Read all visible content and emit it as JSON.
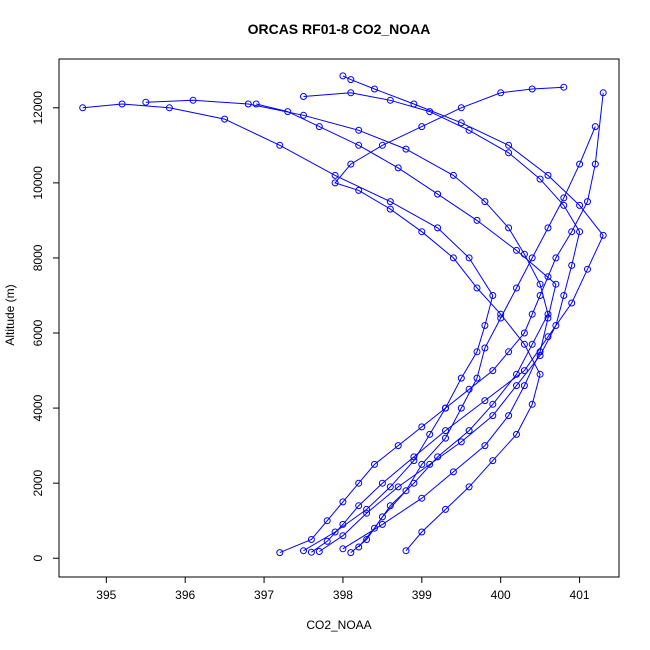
{
  "chart_data": {
    "type": "scatter",
    "title": "ORCAS RF01-8 CO2_NOAA",
    "xlabel": "CO2_NOAA",
    "ylabel": "Altitude (m)",
    "xlim": [
      394.4,
      401.5
    ],
    "ylim": [
      -500,
      13300
    ],
    "x_ticks": [
      395,
      396,
      397,
      398,
      399,
      400,
      401
    ],
    "y_ticks": [
      0,
      2000,
      4000,
      6000,
      8000,
      10000,
      12000
    ],
    "grid": false,
    "legend": "none",
    "markers": "open-circle",
    "lines": true,
    "color": "#0000ff",
    "series": [
      {
        "x": [
          397.2,
          397.6,
          397.8,
          398.0,
          398.2,
          398.4,
          398.7,
          399.0,
          399.3,
          399.6,
          399.9,
          400.1,
          400.3,
          400.4,
          400.5,
          400.6,
          400.7,
          400.9,
          401.1,
          401.2,
          401.3
        ],
        "y": [
          150,
          500,
          1000,
          1500,
          2000,
          2500,
          3000,
          3500,
          4000,
          4500,
          5000,
          5500,
          6000,
          6500,
          7000,
          7500,
          8000,
          8700,
          9500,
          10500,
          12400
        ]
      },
      {
        "x": [
          397.5,
          397.9,
          398.3,
          398.6,
          398.9,
          399.1,
          399.3,
          399.5,
          399.7,
          399.8,
          399.9,
          399.6,
          399.2,
          398.6,
          397.9,
          397.2,
          396.5,
          395.8,
          395.2,
          394.7
        ],
        "y": [
          200,
          700,
          1300,
          1900,
          2600,
          3300,
          4000,
          4800,
          5500,
          6200,
          7000,
          8000,
          8800,
          9500,
          10200,
          11000,
          11700,
          12000,
          12100,
          12000
        ]
      },
      {
        "x": [
          398.2,
          398.4,
          398.6,
          398.9,
          399.2,
          399.6,
          399.9,
          400.2,
          400.4,
          400.6,
          400.5,
          400.3,
          400.1,
          399.8,
          399.4,
          398.8,
          398.2,
          397.5,
          396.8,
          396.1,
          395.5
        ],
        "y": [
          300,
          800,
          1400,
          2000,
          2700,
          3400,
          4100,
          4900,
          5700,
          6500,
          7300,
          8100,
          8800,
          9500,
          10200,
          10900,
          11400,
          11800,
          12100,
          12200,
          12150
        ]
      },
      {
        "x": [
          397.7,
          398.0,
          398.3,
          398.7,
          399.1,
          399.5,
          399.9,
          400.2,
          400.5,
          400.7,
          400.8,
          400.9,
          401.0,
          400.8,
          400.5,
          400.1,
          399.6,
          399.1,
          398.6,
          398.1,
          397.5
        ],
        "y": [
          180,
          600,
          1200,
          1900,
          2500,
          3100,
          3800,
          4600,
          5400,
          6200,
          7000,
          7800,
          8700,
          9400,
          10100,
          10800,
          11400,
          11900,
          12200,
          12400,
          12300
        ]
      },
      {
        "x": [
          398.0,
          398.5,
          399.0,
          399.4,
          399.8,
          400.1,
          400.3,
          400.5,
          400.6,
          400.7,
          400.2,
          399.7,
          399.2,
          398.7,
          398.2,
          397.7,
          397.3,
          396.9
        ],
        "y": [
          250,
          900,
          1600,
          2300,
          3000,
          3800,
          4600,
          5500,
          6400,
          7300,
          8200,
          9000,
          9700,
          10400,
          11000,
          11500,
          11900,
          12100
        ]
      },
      {
        "x": [
          398.8,
          399.0,
          399.3,
          399.6,
          399.9,
          400.2,
          400.4,
          400.5,
          400.3,
          400.0,
          399.7,
          399.4,
          399.0,
          398.6,
          398.2,
          397.9,
          398.1,
          398.5,
          399.0,
          399.5,
          400.0,
          400.4,
          400.8
        ],
        "y": [
          200,
          700,
          1300,
          1900,
          2600,
          3300,
          4100,
          4900,
          5700,
          6500,
          7200,
          8000,
          8700,
          9300,
          9800,
          10000,
          10500,
          11000,
          11500,
          12000,
          12400,
          12500,
          12550
        ]
      },
      {
        "x": [
          398.1,
          398.3,
          398.5,
          398.8,
          399.0,
          399.3,
          399.5,
          399.7,
          399.8,
          400.0,
          400.2,
          400.4,
          400.6,
          400.8,
          401.0,
          401.2
        ],
        "y": [
          150,
          500,
          1100,
          1800,
          2500,
          3200,
          4000,
          4800,
          5600,
          6400,
          7200,
          8000,
          8800,
          9600,
          10500,
          11500
        ]
      },
      {
        "x": [
          397.6,
          397.8,
          398.0,
          398.2,
          398.5,
          398.9,
          399.3,
          399.8,
          400.3,
          400.6,
          400.9,
          401.1,
          401.3,
          401.0,
          400.6,
          400.1,
          399.5,
          398.9,
          398.4,
          398.1,
          398.0
        ],
        "y": [
          160,
          450,
          900,
          1400,
          2000,
          2700,
          3400,
          4200,
          5000,
          5900,
          6800,
          7700,
          8600,
          9400,
          10200,
          11000,
          11600,
          12100,
          12500,
          12750,
          12850
        ]
      }
    ]
  }
}
